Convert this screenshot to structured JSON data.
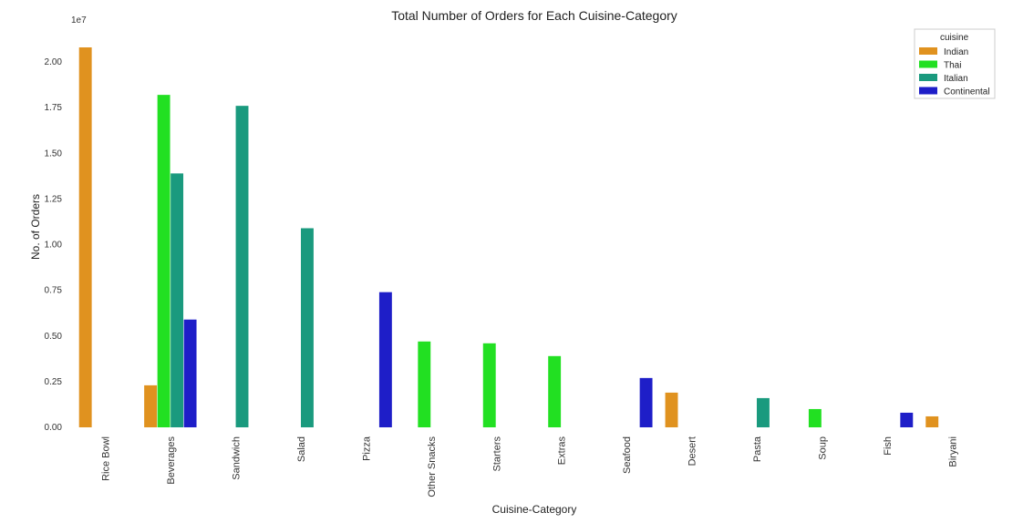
{
  "chart_data": {
    "type": "bar",
    "title": "Total Number of Orders for Each Cuisine-Category",
    "xlabel": "Cuisine-Category",
    "ylabel": "No. of Orders",
    "y_offset_label": "1e7",
    "y_scale": 10000000,
    "ylim": [
      0,
      2.1
    ],
    "yticks": [
      "0.00",
      "0.25",
      "0.50",
      "0.75",
      "1.00",
      "1.25",
      "1.50",
      "1.75",
      "2.00"
    ],
    "grid": false,
    "legend_position": "top-right",
    "legend_title": "cuisine",
    "categories": [
      "Rice Bowl",
      "Beverages",
      "Sandwich",
      "Salad",
      "Pizza",
      "Other Snacks",
      "Starters",
      "Extras",
      "Seafood",
      "Desert",
      "Pasta",
      "Soup",
      "Fish",
      "Biryani"
    ],
    "series": [
      {
        "name": "Indian",
        "color": "#e0921f",
        "values": [
          2.08,
          0.23,
          null,
          null,
          null,
          null,
          null,
          null,
          null,
          0.19,
          null,
          null,
          null,
          0.06
        ]
      },
      {
        "name": "Thai",
        "color": "#22e022",
        "values": [
          null,
          1.82,
          null,
          null,
          null,
          0.47,
          0.46,
          0.39,
          null,
          null,
          null,
          0.1,
          null,
          null
        ]
      },
      {
        "name": "Italian",
        "color": "#1a9a7e",
        "values": [
          null,
          1.39,
          1.76,
          1.09,
          null,
          null,
          null,
          null,
          null,
          null,
          0.16,
          null,
          null,
          null
        ]
      },
      {
        "name": "Continental",
        "color": "#1e1ec8",
        "values": [
          0,
          0.59,
          null,
          null,
          0.74,
          null,
          null,
          null,
          0.27,
          null,
          null,
          null,
          0.08,
          null
        ]
      }
    ]
  }
}
